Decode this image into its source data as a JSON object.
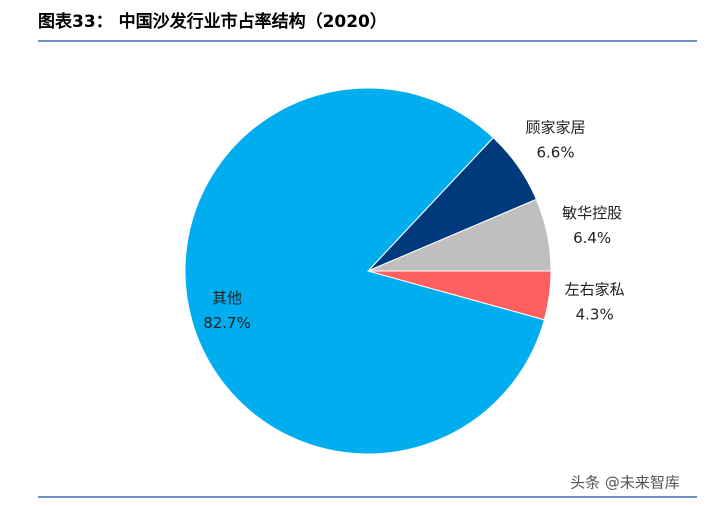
{
  "chart_data": {
    "type": "pie",
    "title": "图表33：  中国沙发行业市占率结构（2020）",
    "categories": [
      "顾家家居",
      "敏华控股",
      "左右家私",
      "其他"
    ],
    "values": [
      6.6,
      6.4,
      4.3,
      82.7
    ],
    "value_labels": [
      "6.6%",
      "6.4%",
      "4.3%",
      "82.7%"
    ],
    "colors": [
      "#003a7d",
      "#bfbfbf",
      "#ff5f5f",
      "#00aeef"
    ],
    "watermark": "头条 @未来智库"
  }
}
